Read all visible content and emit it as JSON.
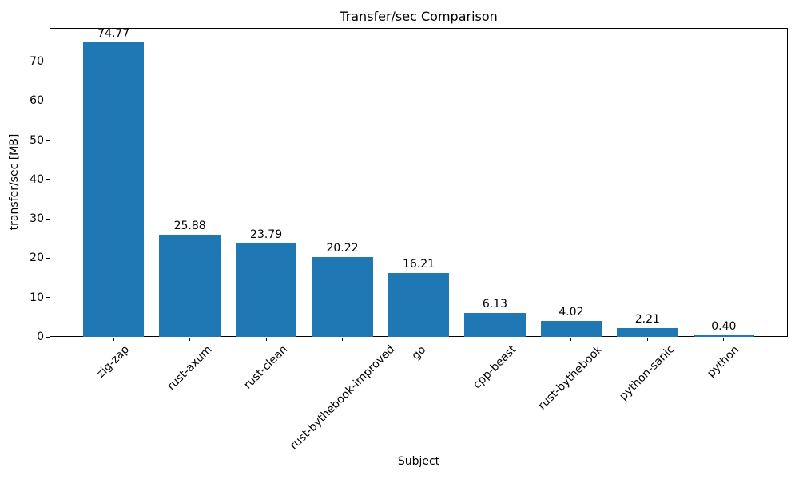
{
  "chart_data": {
    "type": "bar",
    "title": "Transfer/sec Comparison",
    "xlabel": "Subject",
    "ylabel": "transfer/sec [MB]",
    "categories": [
      "zig-zap",
      "rust-axum",
      "rust-clean",
      "rust-bythebook-improved",
      "go",
      "cpp-beast",
      "rust-bythebook",
      "python-sanic",
      "python"
    ],
    "values": [
      74.77,
      25.88,
      23.79,
      20.22,
      16.21,
      6.13,
      4.02,
      2.21,
      0.4
    ],
    "value_labels": [
      "74.77",
      "25.88",
      "23.79",
      "20.22",
      "16.21",
      "6.13",
      "4.02",
      "2.21",
      "0.40"
    ],
    "yticks": [
      0,
      10,
      20,
      30,
      40,
      50,
      60,
      70
    ],
    "ytick_labels": [
      "0",
      "10",
      "20",
      "30",
      "40",
      "50",
      "60",
      "70"
    ],
    "ylim": [
      0,
      78.5
    ],
    "xlim": [
      -0.84,
      8.84
    ],
    "bar_width_units": 0.8,
    "bar_color": "#1f77b4",
    "axis_color": "#000000",
    "text_color": "#000000",
    "grid": false,
    "legend_position": "none",
    "xtick_rotation_deg": 45
  }
}
